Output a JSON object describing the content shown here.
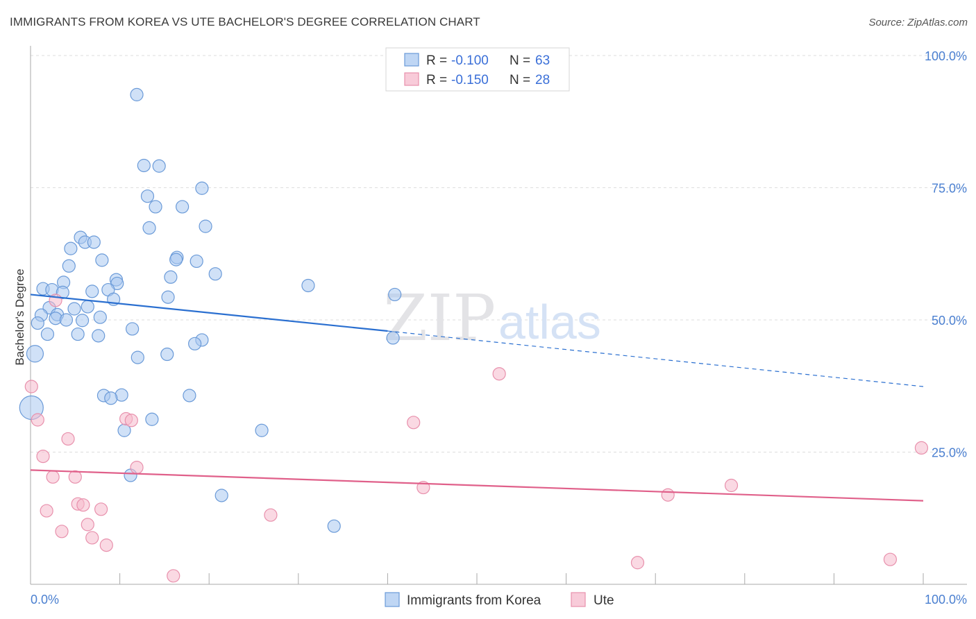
{
  "header": {
    "title": "IMMIGRANTS FROM KOREA VS UTE BACHELOR'S DEGREE CORRELATION CHART",
    "source": "Source: ZipAtlas.com"
  },
  "watermark": {
    "part1": "ZIP",
    "part2": "atlas"
  },
  "legend": {
    "r_label": "R =",
    "n_label": "N =",
    "korea": {
      "r": "-0.100",
      "n": "63"
    },
    "ute": {
      "r": "-0.150",
      "n": "28"
    }
  },
  "bottom_legend": {
    "korea": "Immigrants from Korea",
    "ute": "Ute"
  },
  "colors": {
    "korea_fill": "#a9c8f0",
    "korea_stroke": "#6a9ad8",
    "korea_line": "#2a6fd0",
    "ute_fill": "#f5b9cc",
    "ute_stroke": "#e890ac",
    "ute_line": "#e0608a",
    "tick": "#4a7fd0",
    "grid": "#dddddd"
  },
  "chart_data": {
    "type": "scatter",
    "title": "IMMIGRANTS FROM KOREA VS UTE BACHELOR'S DEGREE CORRELATION CHART",
    "xlabel": "",
    "ylabel": "Bachelor's Degree",
    "xlim": [
      0,
      100
    ],
    "ylim": [
      0,
      100
    ],
    "x_tick_labels": [
      "0.0%",
      "100.0%"
    ],
    "y_ticks": [
      25,
      50,
      75,
      100
    ],
    "y_tick_labels": [
      "25.0%",
      "50.0%",
      "75.0%",
      "100.0%"
    ],
    "grid": true,
    "legend_position": "top-center",
    "series": [
      {
        "name": "Immigrants from Korea",
        "r": -0.1,
        "n": 63,
        "trend": {
          "x0": 0,
          "y0": 54.8,
          "x1": 40,
          "y1": 47.9,
          "dashed_to_x": 100,
          "dashed_to_y": 37.4
        },
        "points": [
          {
            "x": 11.9,
            "y": 92.6
          },
          {
            "x": 14.4,
            "y": 79.1
          },
          {
            "x": 12.7,
            "y": 79.2
          },
          {
            "x": 19.2,
            "y": 74.9
          },
          {
            "x": 13.1,
            "y": 73.4
          },
          {
            "x": 14.0,
            "y": 71.4
          },
          {
            "x": 17.0,
            "y": 71.4
          },
          {
            "x": 19.6,
            "y": 67.7
          },
          {
            "x": 13.3,
            "y": 67.4
          },
          {
            "x": 5.6,
            "y": 65.6
          },
          {
            "x": 6.1,
            "y": 64.7
          },
          {
            "x": 7.1,
            "y": 64.7
          },
          {
            "x": 4.5,
            "y": 63.5
          },
          {
            "x": 16.4,
            "y": 61.8
          },
          {
            "x": 16.3,
            "y": 61.4
          },
          {
            "x": 18.6,
            "y": 61.1
          },
          {
            "x": 8.0,
            "y": 61.3
          },
          {
            "x": 4.3,
            "y": 60.2
          },
          {
            "x": 20.7,
            "y": 58.7
          },
          {
            "x": 15.7,
            "y": 58.1
          },
          {
            "x": 9.6,
            "y": 57.6
          },
          {
            "x": 3.7,
            "y": 57.1
          },
          {
            "x": 9.7,
            "y": 56.9
          },
          {
            "x": 31.1,
            "y": 56.5
          },
          {
            "x": 1.4,
            "y": 55.9
          },
          {
            "x": 2.4,
            "y": 55.7
          },
          {
            "x": 6.9,
            "y": 55.4
          },
          {
            "x": 8.7,
            "y": 55.7
          },
          {
            "x": 3.6,
            "y": 55.2
          },
          {
            "x": 40.8,
            "y": 54.8
          },
          {
            "x": 15.4,
            "y": 54.3
          },
          {
            "x": 9.3,
            "y": 53.9
          },
          {
            "x": 6.4,
            "y": 52.5
          },
          {
            "x": 2.1,
            "y": 52.3
          },
          {
            "x": 4.9,
            "y": 52.1
          },
          {
            "x": 1.2,
            "y": 50.9
          },
          {
            "x": 3.0,
            "y": 51.0
          },
          {
            "x": 7.8,
            "y": 50.5
          },
          {
            "x": 2.8,
            "y": 50.3
          },
          {
            "x": 5.8,
            "y": 49.9
          },
          {
            "x": 4.0,
            "y": 50.0
          },
          {
            "x": 0.8,
            "y": 49.4
          },
          {
            "x": 11.4,
            "y": 48.3
          },
          {
            "x": 1.9,
            "y": 47.3
          },
          {
            "x": 5.3,
            "y": 47.3
          },
          {
            "x": 7.6,
            "y": 47.0
          },
          {
            "x": 40.6,
            "y": 46.6
          },
          {
            "x": 19.2,
            "y": 46.2
          },
          {
            "x": 18.4,
            "y": 45.5
          },
          {
            "x": 0.5,
            "y": 43.6
          },
          {
            "x": 15.3,
            "y": 43.5
          },
          {
            "x": 12.0,
            "y": 42.9
          },
          {
            "x": 8.2,
            "y": 35.7
          },
          {
            "x": 10.2,
            "y": 35.8
          },
          {
            "x": 9.0,
            "y": 35.2
          },
          {
            "x": 17.8,
            "y": 35.7
          },
          {
            "x": 0.1,
            "y": 33.4
          },
          {
            "x": 13.6,
            "y": 31.2
          },
          {
            "x": 10.5,
            "y": 29.1
          },
          {
            "x": 25.9,
            "y": 29.1
          },
          {
            "x": 11.2,
            "y": 20.6
          },
          {
            "x": 21.4,
            "y": 16.8
          },
          {
            "x": 34.0,
            "y": 11.0
          }
        ]
      },
      {
        "name": "Ute",
        "r": -0.15,
        "n": 28,
        "trend": {
          "x0": 0,
          "y0": 21.6,
          "x1": 100,
          "y1": 15.8
        },
        "points": [
          {
            "x": 2.8,
            "y": 53.7
          },
          {
            "x": 52.5,
            "y": 39.8
          },
          {
            "x": 0.1,
            "y": 37.4
          },
          {
            "x": 0.8,
            "y": 31.1
          },
          {
            "x": 10.7,
            "y": 31.3
          },
          {
            "x": 11.3,
            "y": 31.0
          },
          {
            "x": 42.9,
            "y": 30.6
          },
          {
            "x": 4.2,
            "y": 27.5
          },
          {
            "x": 99.8,
            "y": 25.8
          },
          {
            "x": 1.4,
            "y": 24.2
          },
          {
            "x": 11.9,
            "y": 22.1
          },
          {
            "x": 2.5,
            "y": 20.3
          },
          {
            "x": 5.0,
            "y": 20.3
          },
          {
            "x": 44.0,
            "y": 18.3
          },
          {
            "x": 78.5,
            "y": 18.7
          },
          {
            "x": 71.4,
            "y": 16.9
          },
          {
            "x": 5.3,
            "y": 15.2
          },
          {
            "x": 5.9,
            "y": 15.0
          },
          {
            "x": 1.8,
            "y": 13.9
          },
          {
            "x": 7.9,
            "y": 14.2
          },
          {
            "x": 26.9,
            "y": 13.1
          },
          {
            "x": 6.4,
            "y": 11.3
          },
          {
            "x": 3.5,
            "y": 10.0
          },
          {
            "x": 6.9,
            "y": 8.8
          },
          {
            "x": 8.5,
            "y": 7.4
          },
          {
            "x": 96.3,
            "y": 4.7
          },
          {
            "x": 68.0,
            "y": 4.1
          },
          {
            "x": 16.0,
            "y": 1.6
          }
        ]
      }
    ]
  }
}
